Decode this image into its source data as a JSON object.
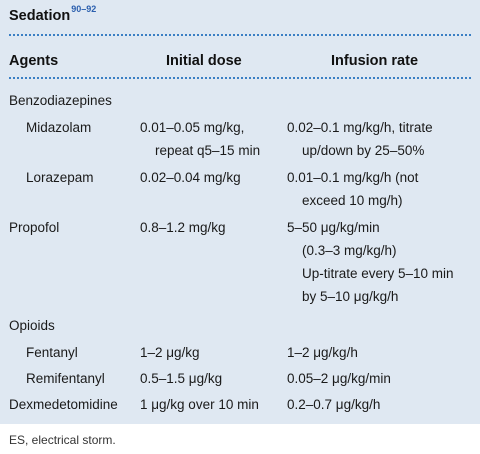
{
  "table": {
    "title": "Sedation",
    "title_ref": "90–92",
    "headers": [
      "Agents",
      "Initial dose",
      "Infusion rate"
    ],
    "groups": [
      {
        "name": "Benzodiazepines",
        "rows": [
          {
            "agent": "Midazolam",
            "dose": [
              "0.01–0.05 mg/kg,",
              "repeat q5–15 min"
            ],
            "rate": [
              "0.02–0.1 mg/kg/h, titrate",
              "up/down by 25–50%"
            ]
          },
          {
            "agent": "Lorazepam",
            "dose": [
              "0.02–0.04 mg/kg"
            ],
            "rate": [
              "0.01–0.1 mg/kg/h (not",
              "exceed 10 mg/h)"
            ]
          }
        ]
      },
      {
        "name": "Propofol",
        "dose": [
          "0.8–1.2 mg/kg"
        ],
        "rate": [
          "5–50 μg/kg/min",
          "(0.3–3 mg/kg/h)",
          "Up-titrate every 5–10 min",
          "by 5–10 μg/kg/h"
        ]
      },
      {
        "name": "Opioids",
        "rows": [
          {
            "agent": "Fentanyl",
            "dose": [
              "1–2 μg/kg"
            ],
            "rate": [
              "1–2 μg/kg/h"
            ]
          },
          {
            "agent": "Remifentanyl",
            "dose": [
              "0.5–1.5 μg/kg"
            ],
            "rate": [
              "0.05–2 μg/kg/min"
            ]
          }
        ]
      },
      {
        "name": "Dexmedetomidine",
        "dose": [
          "1 μg/kg over 10 min"
        ],
        "rate": [
          "0.2–0.7 μg/kg/h"
        ]
      }
    ]
  },
  "footnote": "ES, electrical storm."
}
